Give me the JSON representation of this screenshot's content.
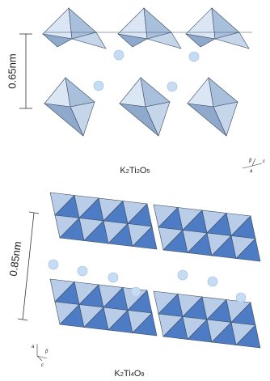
{
  "top_panel": {
    "spacing_label": "0.65nm",
    "formula": [
      "K",
      "2",
      "Ti",
      "2",
      "O",
      "5"
    ],
    "axes": {
      "beta": "β",
      "c": "c",
      "a": "a"
    }
  },
  "bottom_panel": {
    "spacing_label": "0.85nm",
    "formula": [
      "K",
      "2",
      "Ti",
      "4",
      "O",
      "9"
    ],
    "axes": {
      "a": "a",
      "beta": "β",
      "c": "c"
    }
  }
}
